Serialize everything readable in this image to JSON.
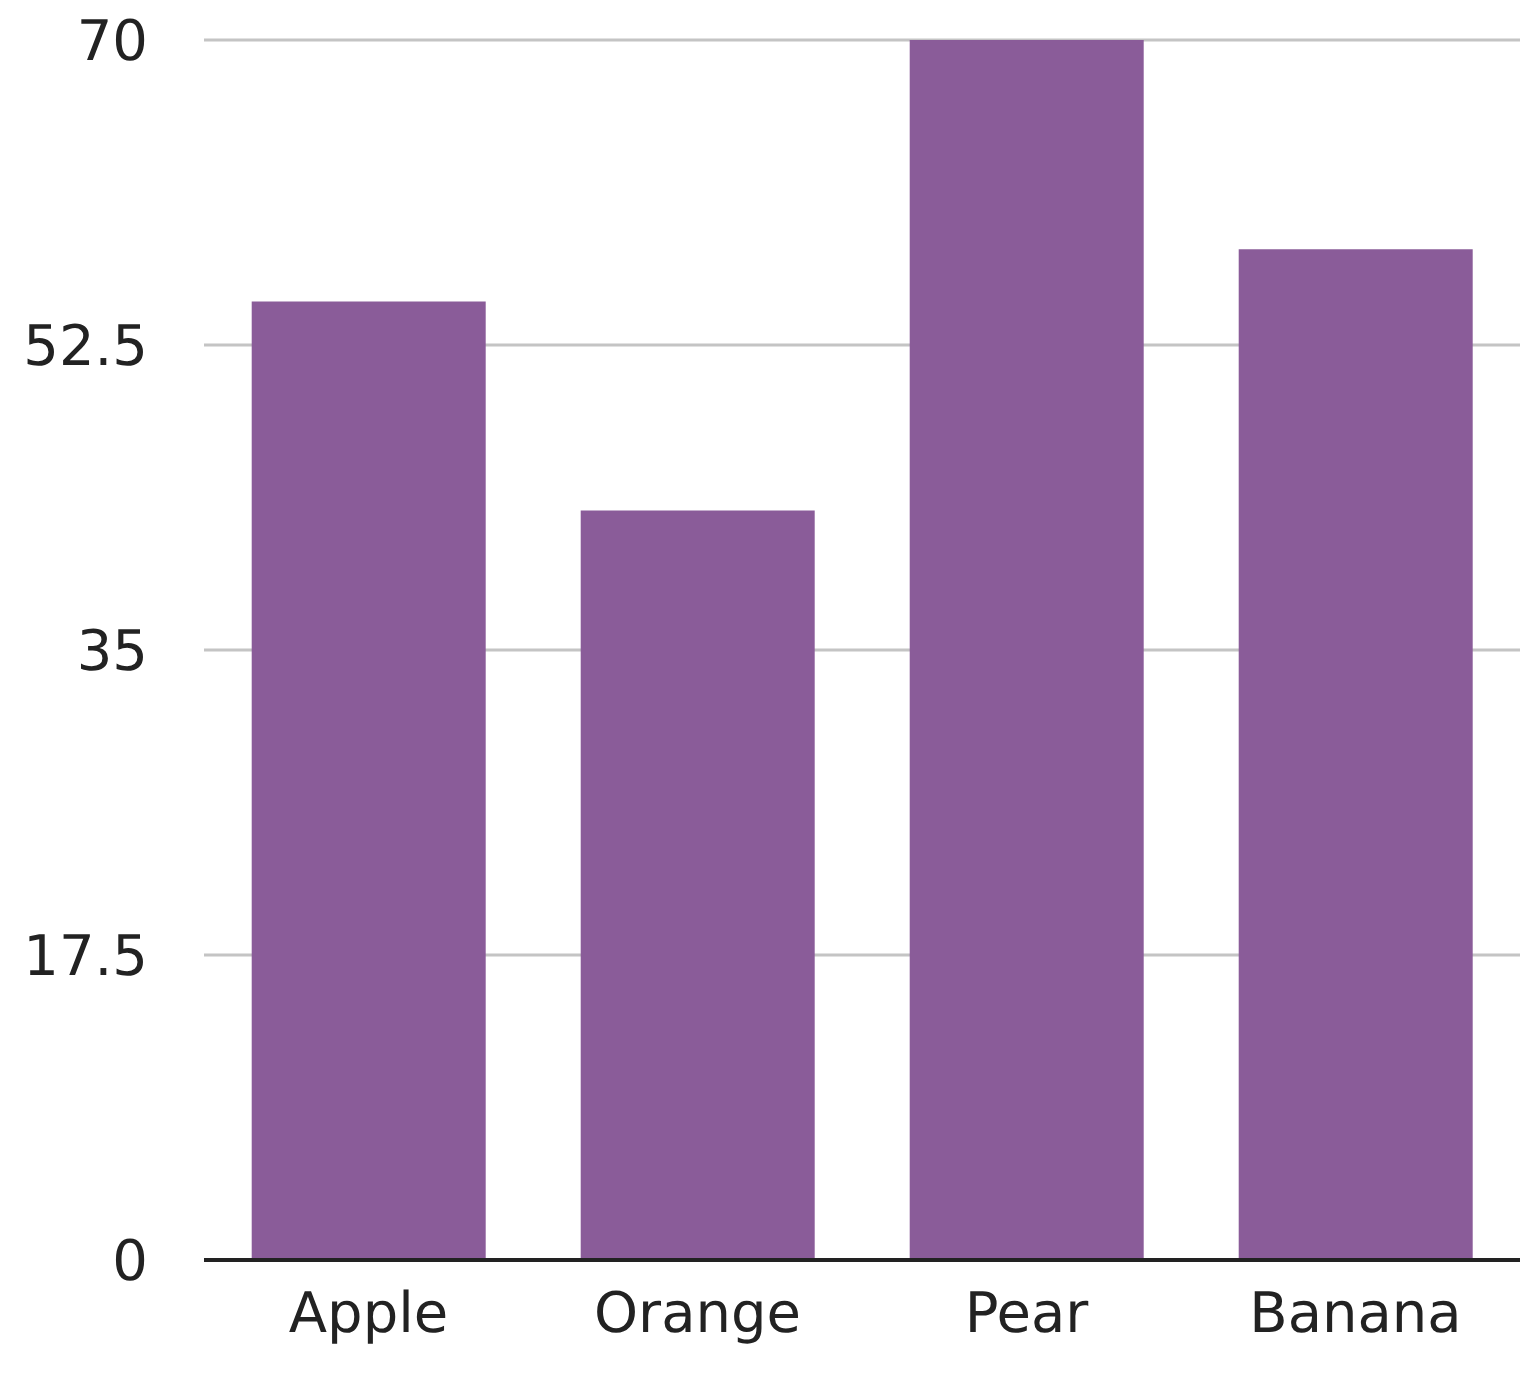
{
  "chart_data": {
    "type": "bar",
    "categories": [
      "Apple",
      "Orange",
      "Pear",
      "Banana"
    ],
    "values": [
      55,
      43,
      70,
      58
    ],
    "color": "#8a5c99",
    "ylim": [
      0,
      70
    ],
    "yticks": [
      0,
      17.5,
      35,
      52.5,
      70
    ],
    "grid": "y"
  }
}
